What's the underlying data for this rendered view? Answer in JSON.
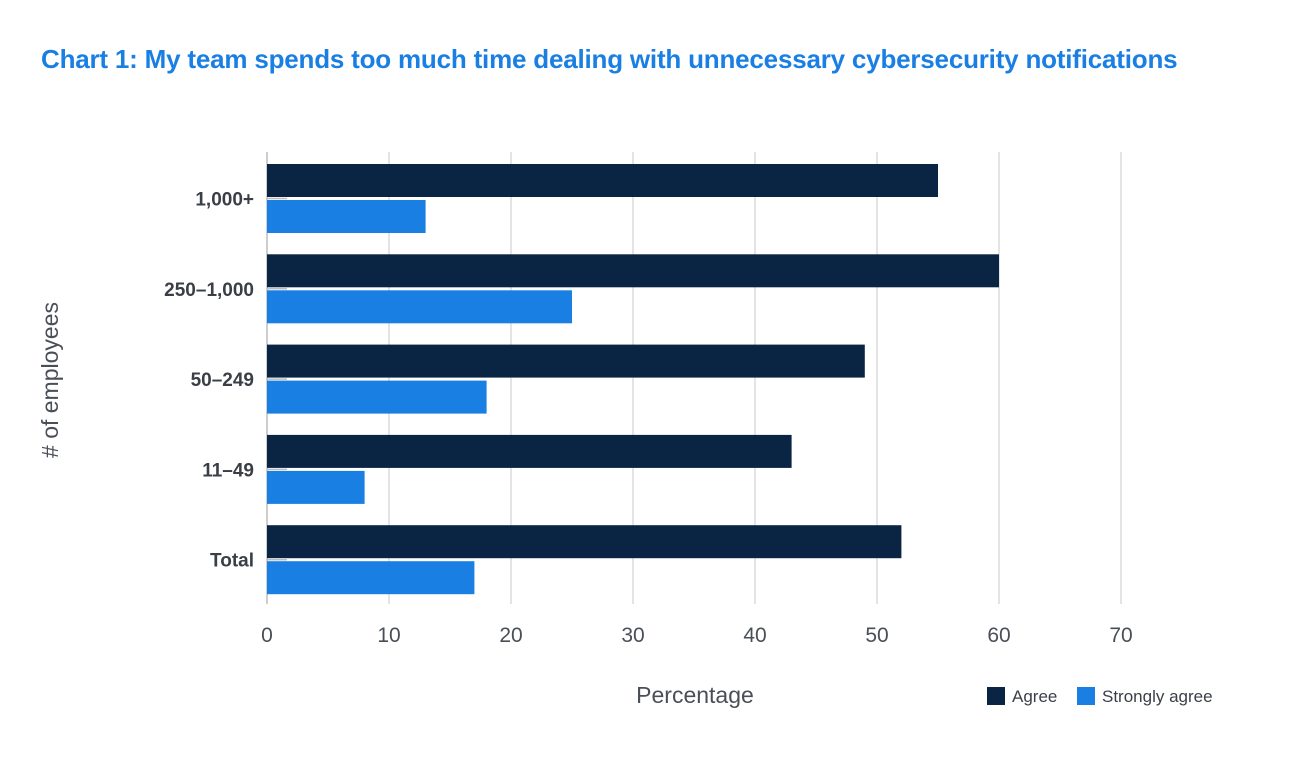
{
  "chart_data": {
    "type": "bar",
    "orientation": "horizontal",
    "title": "Chart 1: My team spends too much time dealing with unnecessary cybersecurity notifications",
    "xlabel": "Percentage",
    "ylabel": "# of employees",
    "categories": [
      "1,000+",
      "250–1,000",
      "50–249",
      "11–49",
      "Total"
    ],
    "series": [
      {
        "name": "Agree",
        "color": "#0a2444",
        "values": [
          55,
          60,
          49,
          43,
          52
        ]
      },
      {
        "name": "Strongly agree",
        "color": "#1a7fe3",
        "values": [
          13,
          25,
          18,
          8,
          17
        ]
      }
    ],
    "xlim": [
      0,
      70
    ],
    "xticks": [
      0,
      10,
      20,
      30,
      40,
      50,
      60,
      70
    ],
    "grid": "vertical",
    "legend_position": "bottom-right"
  }
}
